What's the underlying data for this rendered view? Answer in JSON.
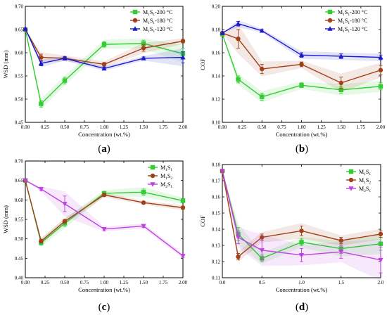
{
  "chart_data": [
    {
      "id": "a",
      "panel_label": "(a)",
      "panel_label_parts": [
        "(",
        "a",
        ")"
      ],
      "type": "line",
      "xlabel": "Concentration (wt.%)",
      "ylabel": "WSD (mm)",
      "xlim": [
        0,
        2.0
      ],
      "ylim": [
        0.45,
        0.7
      ],
      "xticks": [
        "0.00",
        "0.25",
        "0.50",
        "0.75",
        "1.00",
        "1.25",
        "1.50",
        "1.75",
        "2.00"
      ],
      "yticks": [
        "0.45",
        "0.50",
        "0.55",
        "0.60",
        "0.65",
        "0.70"
      ],
      "legend": "top-right",
      "series": [
        {
          "name": "M₁S₁-200 °C",
          "name_base": "M",
          "name_sub1": "1",
          "name_mid": "S",
          "name_sub2": "1",
          "name_tail": "-200 °C",
          "color": "#33cc33",
          "marker": "square",
          "x": [
            0,
            0.2,
            0.5,
            1.0,
            1.5,
            2.0
          ],
          "y": [
            0.65,
            0.49,
            0.54,
            0.618,
            0.62,
            0.598
          ],
          "err": [
            0,
            0.007,
            0.007,
            0.006,
            0.007,
            0.012
          ]
        },
        {
          "name": "M₁S₁-180 °C",
          "name_base": "M",
          "name_sub1": "1",
          "name_mid": "S",
          "name_sub2": "1",
          "name_tail": "-180 °C",
          "color": "#a0401a",
          "marker": "circle",
          "x": [
            0,
            0.2,
            0.5,
            1.0,
            1.5,
            2.0
          ],
          "y": [
            0.65,
            0.59,
            0.588,
            0.575,
            0.61,
            0.625
          ],
          "err": [
            0,
            0.007,
            0.004,
            0.004,
            0.007,
            0.004
          ]
        },
        {
          "name": "M₁S₁-120 °C",
          "name_base": "M",
          "name_sub1": "1",
          "name_mid": "S",
          "name_sub2": "1",
          "name_tail": "-120 °C",
          "color": "#1a1acc",
          "marker": "triangle",
          "x": [
            0,
            0.2,
            0.5,
            1.0,
            1.5,
            2.0
          ],
          "y": [
            0.652,
            0.577,
            0.588,
            0.566,
            0.588,
            0.59
          ],
          "err": [
            0,
            0.005,
            0.003,
            0.003,
            0.003,
            0.012
          ]
        }
      ]
    },
    {
      "id": "b",
      "panel_label": "(b)",
      "panel_label_parts": [
        "(",
        "b",
        ")"
      ],
      "type": "line",
      "xlabel": "Concentration (wt.%)",
      "ylabel": "COF",
      "xlim": [
        0,
        2.0
      ],
      "ylim": [
        0.1,
        0.2
      ],
      "xticks": [
        "0.00",
        "0.25",
        "0.50",
        "0.75",
        "1.00",
        "1.25",
        "1.50",
        "1.75",
        "2.00"
      ],
      "yticks": [
        "0.10",
        "0.12",
        "0.14",
        "0.16",
        "0.18",
        "0.20"
      ],
      "legend": "top-right",
      "series": [
        {
          "name": "M₁S₁-200 °C",
          "name_base": "M",
          "name_sub1": "1",
          "name_mid": "S",
          "name_sub2": "1",
          "name_tail": "-200 °C",
          "color": "#33cc33",
          "marker": "square",
          "x": [
            0,
            0.2,
            0.5,
            1.0,
            1.5,
            2.0
          ],
          "y": [
            0.176,
            0.137,
            0.122,
            0.132,
            0.128,
            0.131
          ],
          "err": [
            0,
            0.003,
            0.003,
            0.002,
            0.003,
            0.003
          ]
        },
        {
          "name": "M₁S₁-180 °C",
          "name_base": "M",
          "name_sub1": "1",
          "name_mid": "S",
          "name_sub2": "1",
          "name_tail": "-180 °C",
          "color": "#a0401a",
          "marker": "circle",
          "x": [
            0,
            0.2,
            0.5,
            1.0,
            1.5,
            2.0
          ],
          "y": [
            0.177,
            0.172,
            0.146,
            0.15,
            0.134,
            0.145
          ],
          "err": [
            0,
            0.008,
            0.004,
            0.002,
            0.005,
            0.004
          ]
        },
        {
          "name": "M₁S₁-120 °C",
          "name_base": "M",
          "name_sub1": "1",
          "name_mid": "S",
          "name_sub2": "1",
          "name_tail": "-120 °C",
          "color": "#1a1acc",
          "marker": "triangle",
          "x": [
            0,
            0.2,
            0.5,
            1.0,
            1.5,
            2.0
          ],
          "y": [
            0.177,
            0.185,
            0.179,
            0.158,
            0.157,
            0.156
          ],
          "err": [
            0,
            0.002,
            0.001,
            0.002,
            0.002,
            0.002
          ]
        }
      ]
    },
    {
      "id": "c",
      "panel_label": "(c)",
      "panel_label_parts": [
        "(",
        "c",
        ")"
      ],
      "type": "line",
      "xlabel": "Concentration (wt.%)",
      "ylabel": "WSD (mm)",
      "xlim": [
        0,
        2.0
      ],
      "ylim": [
        0.4,
        0.7
      ],
      "xticks": [
        "0.00",
        "0.25",
        "0.50",
        "0.75",
        "1.00",
        "1.25",
        "1.50",
        "1.75",
        "2.00"
      ],
      "yticks": [
        "0.40",
        "0.45",
        "0.50",
        "0.55",
        "0.60",
        "0.65",
        "0.70"
      ],
      "legend": "top-right",
      "series": [
        {
          "name": "M₁S₁",
          "name_base": "M",
          "name_sub1": "1",
          "name_mid": "S",
          "name_sub2": "1",
          "name_tail": "",
          "color": "#33cc33",
          "marker": "square",
          "x": [
            0,
            0.2,
            0.5,
            1.0,
            1.5,
            2.0
          ],
          "y": [
            0.65,
            0.49,
            0.54,
            0.617,
            0.62,
            0.598
          ],
          "err": [
            0,
            0.006,
            0.008,
            0.005,
            0.008,
            0.005
          ]
        },
        {
          "name": "M₁S₂",
          "name_base": "M",
          "name_sub1": "1",
          "name_mid": "S",
          "name_sub2": "2",
          "name_tail": "",
          "color": "#a0401a",
          "marker": "circle",
          "x": [
            0,
            0.2,
            0.5,
            1.0,
            1.5,
            2.0
          ],
          "y": [
            0.65,
            0.494,
            0.545,
            0.613,
            0.593,
            0.58
          ],
          "err": [
            0,
            0.005,
            0.005,
            0.004,
            0.003,
            0.004
          ]
        },
        {
          "name": "M₂S₁",
          "name_base": "M",
          "name_sub1": "2",
          "name_mid": "S",
          "name_sub2": "1",
          "name_tail": "",
          "color": "#c040e0",
          "marker": "triangle-down",
          "x": [
            0,
            0.2,
            0.5,
            1.0,
            1.5,
            2.0
          ],
          "y": [
            0.65,
            0.628,
            0.59,
            0.525,
            0.533,
            0.456
          ],
          "err": [
            0,
            0.004,
            0.02,
            0.004,
            0.004,
            0.004
          ]
        }
      ]
    },
    {
      "id": "d",
      "panel_label": "(d)",
      "panel_label_parts": [
        "(",
        "d",
        ")"
      ],
      "type": "line",
      "xlabel": "Concentration (wt.%)",
      "ylabel": "COF",
      "xlim": [
        0,
        2.0
      ],
      "ylim": [
        0.11,
        0.18
      ],
      "xticks": [
        "0.0",
        "0.5",
        "1.0",
        "1.5",
        "2.0"
      ],
      "yticks": [
        "0.11",
        "0.12",
        "0.13",
        "0.14",
        "0.15",
        "0.16",
        "0.17",
        "0.18"
      ],
      "legend": "top-right",
      "series": [
        {
          "name": "M₁S₁",
          "name_base": "M",
          "name_sub1": "1",
          "name_mid": "S",
          "name_sub2": "1",
          "name_tail": "",
          "color": "#33cc33",
          "marker": "square",
          "x": [
            0,
            0.2,
            0.5,
            1.0,
            1.5,
            2.0
          ],
          "y": [
            0.176,
            0.137,
            0.122,
            0.132,
            0.128,
            0.131
          ],
          "err": [
            0,
            0.004,
            0.002,
            0.002,
            0.003,
            0.004
          ]
        },
        {
          "name": "M₁S₂",
          "name_base": "M",
          "name_sub1": "1",
          "name_mid": "S",
          "name_sub2": "2",
          "name_tail": "",
          "color": "#a0401a",
          "marker": "circle",
          "x": [
            0,
            0.2,
            0.5,
            1.0,
            1.5,
            2.0
          ],
          "y": [
            0.176,
            0.123,
            0.135,
            0.139,
            0.133,
            0.137
          ],
          "err": [
            0,
            0.002,
            0.002,
            0.003,
            0.002,
            0.002
          ]
        },
        {
          "name": "M₂S₁",
          "name_base": "M",
          "name_sub1": "2",
          "name_mid": "S",
          "name_sub2": "1",
          "name_tail": "",
          "color": "#c040e0",
          "marker": "triangle-down",
          "x": [
            0,
            0.2,
            0.5,
            1.0,
            1.5,
            2.0
          ],
          "y": [
            0.176,
            0.135,
            0.127,
            0.124,
            0.126,
            0.121
          ],
          "err": [
            0,
            0.004,
            0.006,
            0.004,
            0.004,
            0.008
          ]
        }
      ]
    }
  ]
}
